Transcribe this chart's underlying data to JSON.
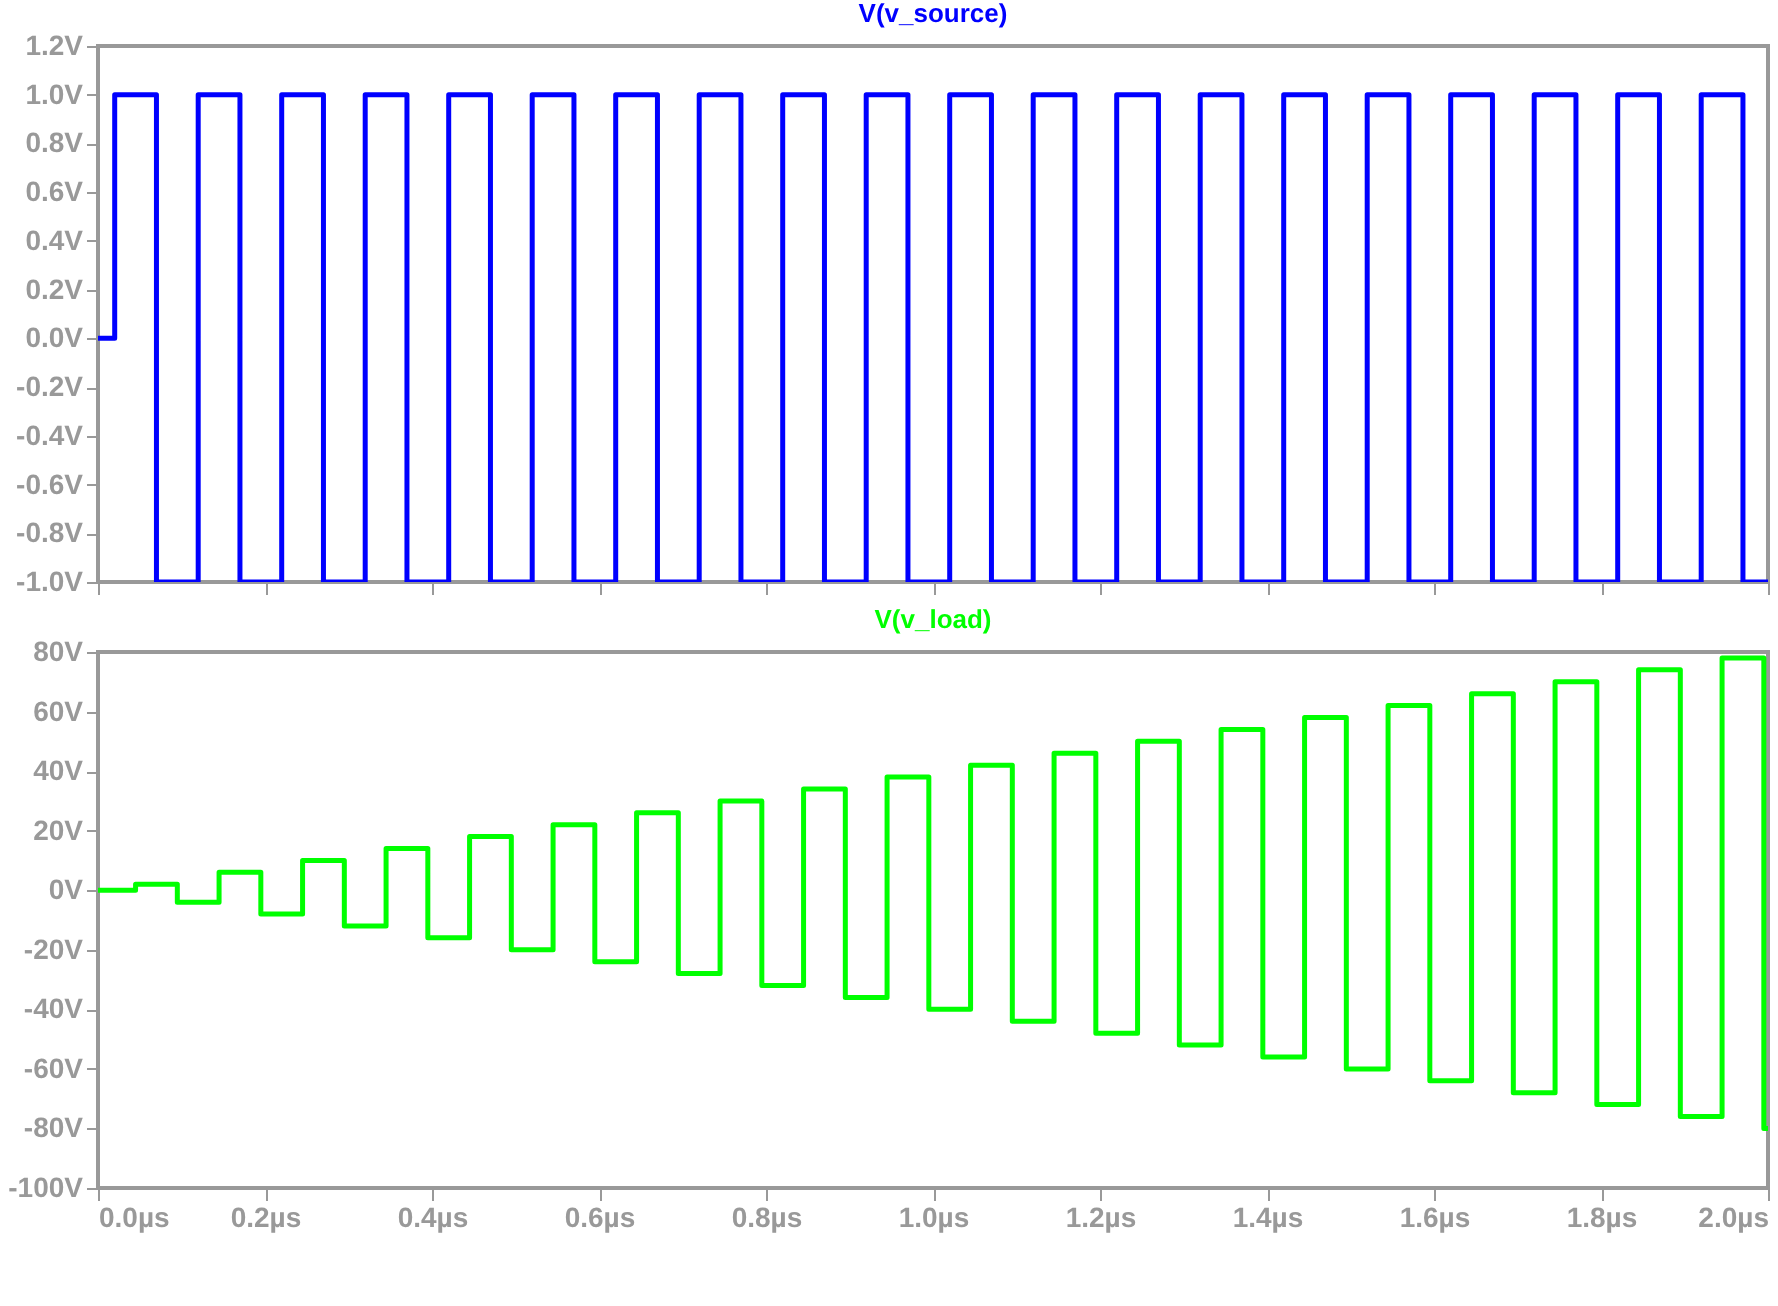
{
  "chart_data": [
    {
      "type": "line",
      "tick_labels": "y",
      "xlim": [
        0,
        2
      ],
      "xticks": [
        {
          "value": 0,
          "label": null
        },
        {
          "value": 0.2,
          "label": null
        },
        {
          "value": 0.4,
          "label": null
        },
        {
          "value": 0.6,
          "label": null
        },
        {
          "value": 0.8,
          "label": null
        },
        {
          "value": 1.0,
          "label": null
        },
        {
          "value": 1.2,
          "label": null
        },
        {
          "value": 1.4,
          "label": null
        },
        {
          "value": 1.6,
          "label": null
        },
        {
          "value": 1.8,
          "label": null
        },
        {
          "value": 2.0,
          "label": null
        }
      ],
      "ylim": [
        -1.0,
        1.2
      ],
      "yticks": [
        {
          "value": -1.0,
          "label": "-1.0V"
        },
        {
          "value": -0.8,
          "label": "-0.8V"
        },
        {
          "value": -0.6,
          "label": "-0.6V"
        },
        {
          "value": -0.4,
          "label": "-0.4V"
        },
        {
          "value": -0.2,
          "label": "-0.2V"
        },
        {
          "value": 0,
          "label": "0.0V"
        },
        {
          "value": 0.2,
          "label": "0.2V"
        },
        {
          "value": 0.4,
          "label": "0.4V"
        },
        {
          "value": 0.6,
          "label": "0.6V"
        },
        {
          "value": 0.8,
          "label": "0.8V"
        },
        {
          "value": 1.0,
          "label": "1.0V"
        },
        {
          "value": 1.2,
          "label": "1.2V"
        }
      ],
      "series": [
        {
          "name": "V(v_source)",
          "color": "#0000ff",
          "x": [
            0,
            0.02,
            0.02,
            0.07,
            0.07,
            0.12,
            0.12,
            0.17,
            0.17,
            0.22,
            0.22,
            0.27,
            0.27,
            0.32,
            0.32,
            0.37,
            0.37,
            0.42,
            0.42,
            0.47,
            0.47,
            0.52,
            0.52,
            0.57,
            0.57,
            0.62,
            0.62,
            0.67,
            0.67,
            0.72,
            0.72,
            0.77,
            0.77,
            0.82,
            0.82,
            0.87,
            0.87,
            0.92,
            0.92,
            0.97,
            0.97,
            1.02,
            1.02,
            1.07,
            1.07,
            1.12,
            1.12,
            1.17,
            1.17,
            1.22,
            1.22,
            1.27,
            1.27,
            1.32,
            1.32,
            1.37,
            1.37,
            1.42,
            1.42,
            1.47,
            1.47,
            1.52,
            1.52,
            1.57,
            1.57,
            1.62,
            1.62,
            1.67,
            1.67,
            1.72,
            1.72,
            1.77,
            1.77,
            1.82,
            1.82,
            1.87,
            1.87,
            1.92,
            1.92,
            1.97,
            1.97,
            2.0
          ],
          "values": [
            0,
            0,
            1,
            1,
            -1,
            -1,
            1,
            1,
            -1,
            -1,
            1,
            1,
            -1,
            -1,
            1,
            1,
            -1,
            -1,
            1,
            1,
            -1,
            -1,
            1,
            1,
            -1,
            -1,
            1,
            1,
            -1,
            -1,
            1,
            1,
            -1,
            -1,
            1,
            1,
            -1,
            -1,
            1,
            1,
            -1,
            -1,
            1,
            1,
            -1,
            -1,
            1,
            1,
            -1,
            -1,
            1,
            1,
            -1,
            -1,
            1,
            1,
            -1,
            -1,
            1,
            1,
            -1,
            -1,
            1,
            1,
            -1,
            -1,
            1,
            1,
            -1,
            -1,
            1,
            1,
            -1,
            -1,
            1,
            1,
            -1,
            -1,
            1,
            1,
            -1,
            -1
          ]
        }
      ]
    },
    {
      "type": "line",
      "xlim": [
        0,
        2
      ],
      "xticks": [
        {
          "value": 0,
          "label": "0.0µs"
        },
        {
          "value": 0.2,
          "label": "0.2µs"
        },
        {
          "value": 0.4,
          "label": "0.4µs"
        },
        {
          "value": 0.6,
          "label": "0.6µs"
        },
        {
          "value": 0.8,
          "label": "0.8µs"
        },
        {
          "value": 1.0,
          "label": "1.0µs"
        },
        {
          "value": 1.2,
          "label": "1.2µs"
        },
        {
          "value": 1.4,
          "label": "1.4µs"
        },
        {
          "value": 1.6,
          "label": "1.6µs"
        },
        {
          "value": 1.8,
          "label": "1.8µs"
        },
        {
          "value": 2.0,
          "label": "2.0µs"
        }
      ],
      "ylim": [
        -100,
        80
      ],
      "yticks": [
        {
          "value": -100,
          "label": "-100V"
        },
        {
          "value": -80,
          "label": "-80V"
        },
        {
          "value": -60,
          "label": "-60V"
        },
        {
          "value": -40,
          "label": "-40V"
        },
        {
          "value": -20,
          "label": "-20V"
        },
        {
          "value": 0,
          "label": "0V"
        },
        {
          "value": 20,
          "label": "20V"
        },
        {
          "value": 40,
          "label": "40V"
        },
        {
          "value": 60,
          "label": "60V"
        },
        {
          "value": 80,
          "label": "80V"
        }
      ],
      "series": [
        {
          "name": "V(v_load)",
          "color": "#00ff00",
          "x": [
            0,
            0.045,
            0.045,
            0.095,
            0.095,
            0.145,
            0.145,
            0.195,
            0.195,
            0.245,
            0.245,
            0.295,
            0.295,
            0.345,
            0.345,
            0.395,
            0.395,
            0.445,
            0.445,
            0.495,
            0.495,
            0.545,
            0.545,
            0.595,
            0.595,
            0.645,
            0.645,
            0.695,
            0.695,
            0.745,
            0.745,
            0.795,
            0.795,
            0.845,
            0.845,
            0.895,
            0.895,
            0.945,
            0.945,
            0.995,
            0.995,
            1.045,
            1.045,
            1.095,
            1.095,
            1.145,
            1.145,
            1.195,
            1.195,
            1.245,
            1.245,
            1.295,
            1.295,
            1.345,
            1.345,
            1.395,
            1.395,
            1.445,
            1.445,
            1.495,
            1.495,
            1.545,
            1.545,
            1.595,
            1.595,
            1.645,
            1.645,
            1.695,
            1.695,
            1.745,
            1.745,
            1.795,
            1.795,
            1.845,
            1.845,
            1.895,
            1.895,
            1.945,
            1.945,
            1.995,
            1.995,
            2.0
          ],
          "values": [
            0,
            0,
            2,
            2,
            -4,
            -4,
            6,
            6,
            -8,
            -8,
            10,
            10,
            -12,
            -12,
            14,
            14,
            -16,
            -16,
            18,
            18,
            -20,
            -20,
            22,
            22,
            -24,
            -24,
            26,
            26,
            -28,
            -28,
            30,
            30,
            -32,
            -32,
            34,
            34,
            -36,
            -36,
            38,
            38,
            -40,
            -40,
            42,
            42,
            -44,
            -44,
            46,
            46,
            -48,
            -48,
            50,
            50,
            -52,
            -52,
            54,
            54,
            -56,
            -56,
            58,
            58,
            -60,
            -60,
            62,
            62,
            -64,
            -64,
            66,
            66,
            -68,
            -68,
            70,
            70,
            -72,
            -72,
            74,
            74,
            -76,
            -76,
            78,
            78,
            -80,
            -80
          ]
        }
      ]
    }
  ]
}
